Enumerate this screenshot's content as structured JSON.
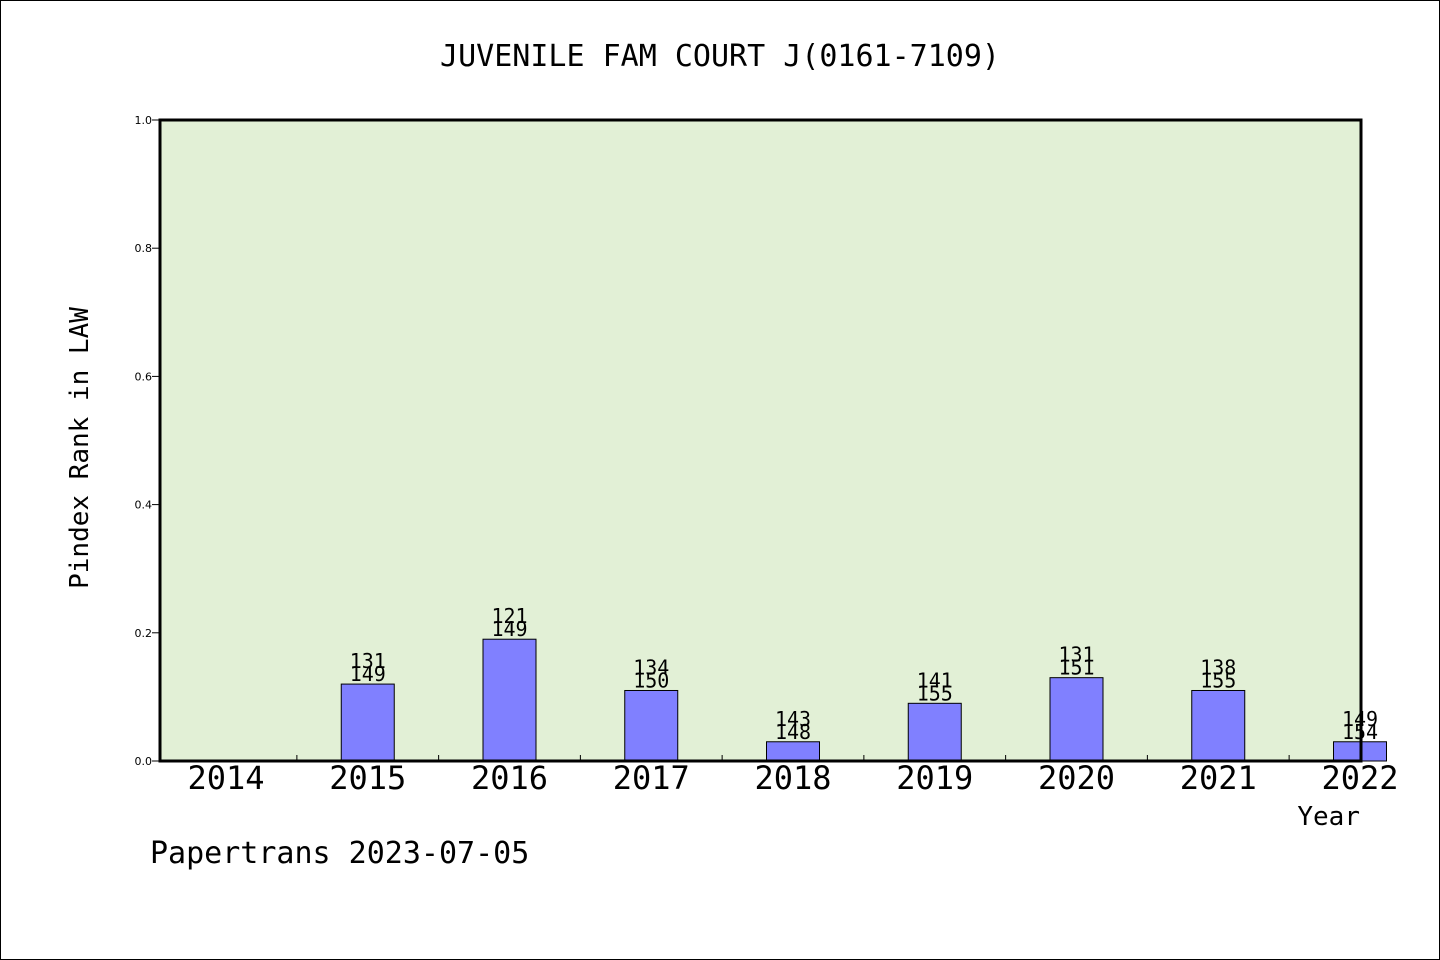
{
  "chart_data": {
    "type": "bar",
    "title": "JUVENILE FAM COURT J(0161-7109)",
    "xlabel": "Year",
    "ylabel": "Pindex Rank in LAW",
    "ylim": [
      0,
      1.0
    ],
    "y_ticks": [
      "0.0",
      "0.2",
      "0.4",
      "0.6",
      "0.8",
      "1.0"
    ],
    "categories": [
      "2014",
      "2015",
      "2016",
      "2017",
      "2018",
      "2019",
      "2020",
      "2021",
      "2022"
    ],
    "values": [
      0,
      0.12,
      0.19,
      0.11,
      0.03,
      0.09,
      0.13,
      0.11,
      0.03
    ],
    "labels_top": [
      "",
      "131",
      "121",
      "134",
      "143",
      "141",
      "131",
      "138",
      "149"
    ],
    "labels_bottom": [
      "",
      "149",
      "149",
      "150",
      "148",
      "155",
      "151",
      "155",
      "154"
    ],
    "plot_background": "#e2f0d6",
    "bar_color": "#8080ff",
    "grid": false,
    "legend": "none"
  },
  "footer": "Papertrans 2023-07-05"
}
